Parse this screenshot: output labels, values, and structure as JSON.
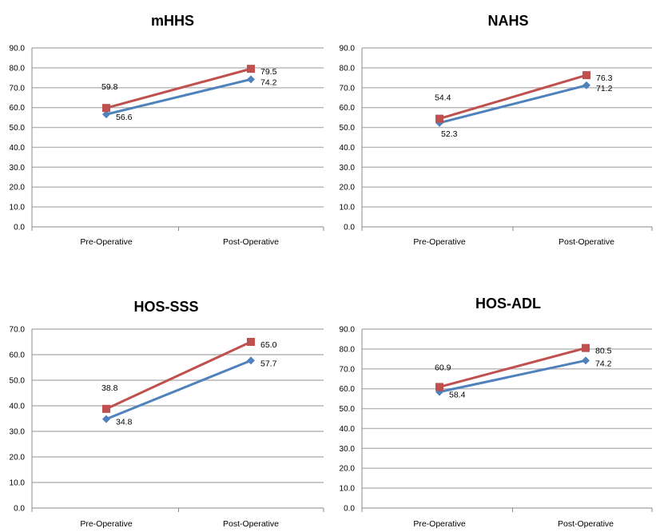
{
  "chart_data": [
    {
      "type": "line",
      "title": "mHHS",
      "categories": [
        "Pre-Operative",
        "Post-Operative"
      ],
      "ylim": [
        0,
        90
      ],
      "ytick_step": 10,
      "ytick_labels": [
        "0.0",
        "10.0",
        "20.0",
        "30.0",
        "40.0",
        "50.0",
        "60.0",
        "70.0",
        "80.0",
        "90.0"
      ],
      "grid": true,
      "series": [
        {
          "values": [
            56.6,
            74.2
          ],
          "labels": [
            "56.6",
            "74.2"
          ],
          "color": "#4f81bd",
          "marker": "diamond"
        },
        {
          "values": [
            59.8,
            79.5
          ],
          "labels": [
            "59.8",
            "79.5"
          ],
          "color": "#c0504d",
          "marker": "square"
        }
      ]
    },
    {
      "type": "line",
      "title": "NAHS",
      "categories": [
        "Pre-Operative",
        "Post-Operative"
      ],
      "ylim": [
        0,
        90
      ],
      "ytick_step": 10,
      "ytick_labels": [
        "0.0",
        "10.0",
        "20.0",
        "30.0",
        "40.0",
        "50.0",
        "60.0",
        "70.0",
        "80.0",
        "90.0"
      ],
      "grid": true,
      "series": [
        {
          "values": [
            52.3,
            71.2
          ],
          "labels": [
            "52.3",
            "71.2"
          ],
          "color": "#4f81bd",
          "marker": "diamond"
        },
        {
          "values": [
            54.4,
            76.3
          ],
          "labels": [
            "54.4",
            "76.3"
          ],
          "color": "#c0504d",
          "marker": "square"
        }
      ]
    },
    {
      "type": "line",
      "title": "HOS-SSS",
      "categories": [
        "Pre-Operative",
        "Post-Operative"
      ],
      "ylim": [
        0,
        70
      ],
      "ytick_step": 10,
      "ytick_labels": [
        "0.0",
        "10.0",
        "20.0",
        "30.0",
        "40.0",
        "50.0",
        "60.0",
        "70.0"
      ],
      "grid": true,
      "series": [
        {
          "values": [
            34.8,
            57.7
          ],
          "labels": [
            "34.8",
            "57.7"
          ],
          "color": "#4f81bd",
          "marker": "diamond"
        },
        {
          "values": [
            38.8,
            65.0
          ],
          "labels": [
            "38.8",
            "65.0"
          ],
          "color": "#c0504d",
          "marker": "square"
        }
      ]
    },
    {
      "type": "line",
      "title": "HOS-ADL",
      "categories": [
        "Pre-Operative",
        "Post-Operative"
      ],
      "ylim": [
        0,
        90
      ],
      "ytick_step": 10,
      "ytick_labels": [
        "0.0",
        "10.0",
        "20.0",
        "30.0",
        "40.0",
        "50.0",
        "60.0",
        "70.0",
        "80.0",
        "90.0"
      ],
      "grid": true,
      "series": [
        {
          "values": [
            58.4,
            74.2
          ],
          "labels": [
            "58.4",
            "74.2"
          ],
          "color": "#4f81bd",
          "marker": "diamond"
        },
        {
          "values": [
            60.9,
            80.5
          ],
          "labels": [
            "60.9",
            "80.5"
          ],
          "color": "#c0504d",
          "marker": "square"
        }
      ]
    }
  ]
}
